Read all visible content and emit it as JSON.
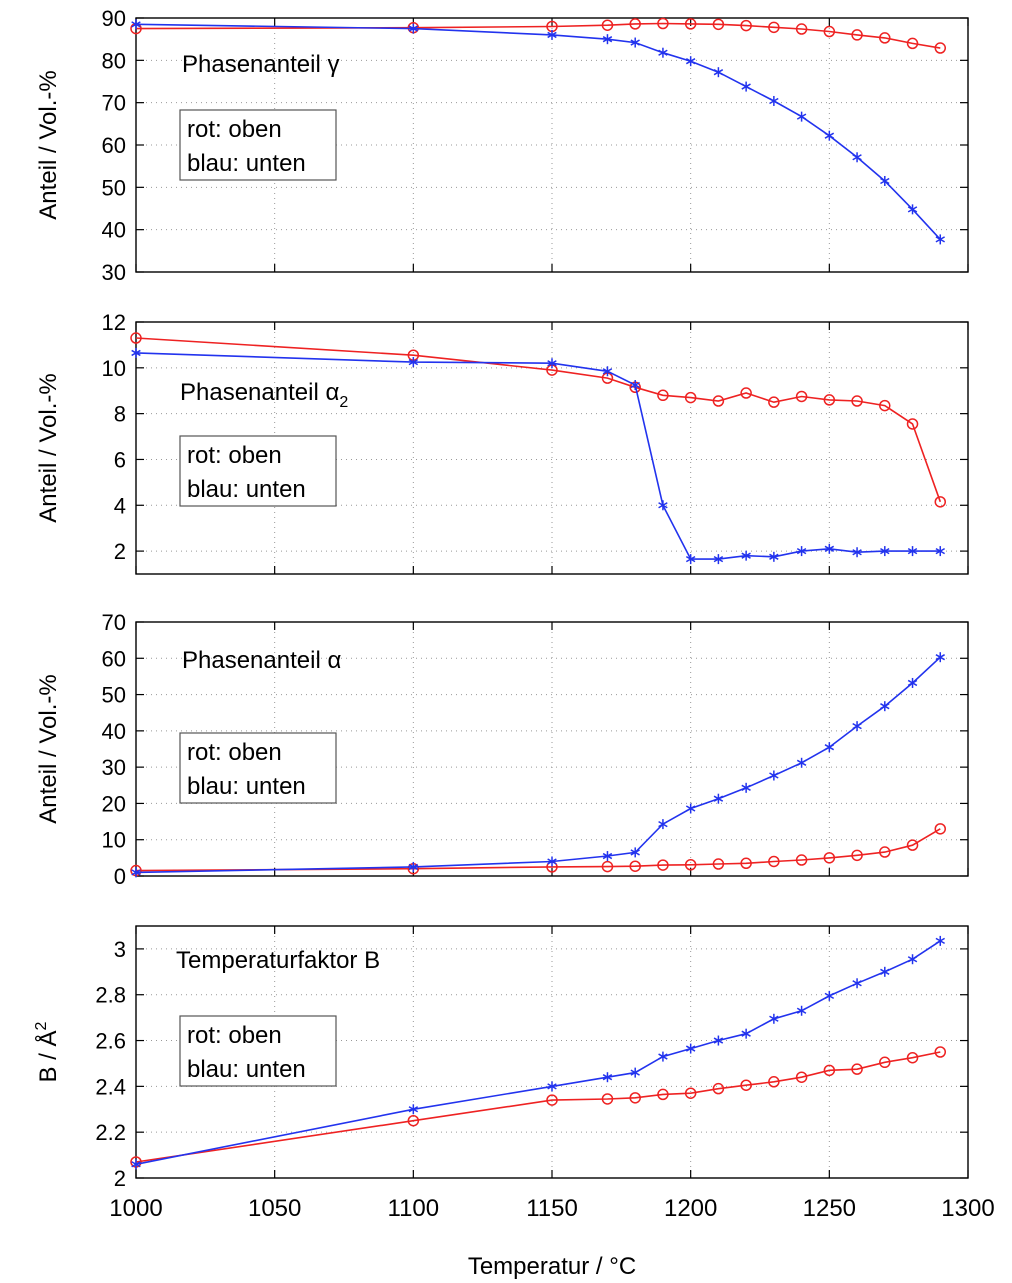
{
  "colors": {
    "red": "#ee2222",
    "blue": "#2233ee",
    "grid": "#999999"
  },
  "chart_data": [
    {
      "type": "line",
      "title": "Phasenanteil γ",
      "title_sub": "",
      "ylabel": "Anteil / Vol.-%",
      "ylabel_sup": "",
      "xlabel": "",
      "xlim": [
        1000,
        1300
      ],
      "ylim": [
        30,
        90
      ],
      "yticks": [
        "30",
        "40",
        "50",
        "60",
        "70",
        "80",
        "90"
      ],
      "xticks": [],
      "legend": [
        "rot: oben",
        "blau: unten"
      ],
      "series": [
        {
          "color": "red",
          "marker": "circle",
          "x": [
            1000,
            1100,
            1150,
            1170,
            1180,
            1190,
            1200,
            1210,
            1220,
            1230,
            1240,
            1250,
            1260,
            1270,
            1280,
            1290
          ],
          "values": [
            87.5,
            87.7,
            88.0,
            88.3,
            88.6,
            88.7,
            88.6,
            88.5,
            88.2,
            87.8,
            87.4,
            86.8,
            86.0,
            85.3,
            84.0,
            82.9
          ]
        },
        {
          "color": "blue",
          "marker": "asterisk",
          "x": [
            1000,
            1100,
            1150,
            1170,
            1180,
            1190,
            1200,
            1210,
            1220,
            1230,
            1240,
            1250,
            1260,
            1270,
            1280,
            1290
          ],
          "values": [
            88.5,
            87.5,
            86.0,
            85.0,
            84.2,
            81.8,
            79.8,
            77.2,
            73.8,
            70.4,
            66.7,
            62.2,
            57.1,
            51.5,
            44.8,
            37.7
          ]
        }
      ]
    },
    {
      "type": "line",
      "title": "Phasenanteil α",
      "title_sub": "2",
      "ylabel": "Anteil / Vol.-%",
      "ylabel_sup": "",
      "xlabel": "",
      "xlim": [
        1000,
        1300
      ],
      "ylim": [
        1,
        12
      ],
      "yticks": [
        "2",
        "4",
        "6",
        "8",
        "10",
        "12"
      ],
      "xticks": [],
      "legend": [
        "rot: oben",
        "blau: unten"
      ],
      "series": [
        {
          "color": "red",
          "marker": "circle",
          "x": [
            1000,
            1100,
            1150,
            1170,
            1180,
            1190,
            1200,
            1210,
            1220,
            1230,
            1240,
            1250,
            1260,
            1270,
            1280,
            1290
          ],
          "values": [
            11.3,
            10.55,
            9.9,
            9.55,
            9.15,
            8.8,
            8.7,
            8.55,
            8.9,
            8.5,
            8.75,
            8.6,
            8.55,
            8.35,
            7.55,
            4.15
          ]
        },
        {
          "color": "blue",
          "marker": "asterisk",
          "x": [
            1000,
            1100,
            1150,
            1170,
            1180,
            1190,
            1200,
            1210,
            1220,
            1230,
            1240,
            1250,
            1260,
            1270,
            1280,
            1290
          ],
          "values": [
            10.65,
            10.25,
            10.2,
            9.85,
            9.25,
            4.0,
            1.65,
            1.65,
            1.8,
            1.75,
            2.0,
            2.1,
            1.95,
            2.0,
            2.0,
            2.0
          ]
        }
      ]
    },
    {
      "type": "line",
      "title": "Phasenanteil α",
      "title_sub": "",
      "ylabel": "Anteil / Vol.-%",
      "ylabel_sup": "",
      "xlabel": "",
      "xlim": [
        1000,
        1300
      ],
      "ylim": [
        0,
        70
      ],
      "yticks": [
        "0",
        "10",
        "20",
        "30",
        "40",
        "50",
        "60",
        "70"
      ],
      "xticks": [],
      "legend": [
        "rot: oben",
        "blau: unten"
      ],
      "series": [
        {
          "color": "red",
          "marker": "circle",
          "x": [
            1000,
            1100,
            1150,
            1170,
            1180,
            1190,
            1200,
            1210,
            1220,
            1230,
            1240,
            1250,
            1260,
            1270,
            1280,
            1290
          ],
          "values": [
            1.5,
            2.0,
            2.5,
            2.6,
            2.7,
            3.0,
            3.1,
            3.3,
            3.5,
            4.0,
            4.4,
            5.0,
            5.7,
            6.6,
            8.5,
            13.0
          ]
        },
        {
          "color": "blue",
          "marker": "asterisk",
          "x": [
            1000,
            1100,
            1150,
            1170,
            1180,
            1190,
            1200,
            1210,
            1220,
            1230,
            1240,
            1250,
            1260,
            1270,
            1280,
            1290
          ],
          "values": [
            1.0,
            2.5,
            4.0,
            5.5,
            6.5,
            14.3,
            18.6,
            21.3,
            24.3,
            27.7,
            31.2,
            35.5,
            41.3,
            46.8,
            53.2,
            60.3
          ]
        }
      ]
    },
    {
      "type": "line",
      "title": "Temperaturfaktor B",
      "title_sub": "",
      "ylabel": "B / Å",
      "ylabel_sup": "2",
      "xlabel": "Temperatur / °C",
      "xlim": [
        1000,
        1300
      ],
      "ylim": [
        2.0,
        3.1
      ],
      "yticks": [
        "2",
        "2.2",
        "2.4",
        "2.6",
        "2.8",
        "3"
      ],
      "xticks": [
        "1000",
        "1050",
        "1100",
        "1150",
        "1200",
        "1250",
        "1300"
      ],
      "legend": [
        "rot: oben",
        "blau: unten"
      ],
      "series": [
        {
          "color": "red",
          "marker": "circle",
          "x": [
            1000,
            1100,
            1150,
            1170,
            1180,
            1190,
            1200,
            1210,
            1220,
            1230,
            1240,
            1250,
            1260,
            1270,
            1280,
            1290
          ],
          "values": [
            2.07,
            2.25,
            2.34,
            2.345,
            2.35,
            2.365,
            2.37,
            2.39,
            2.405,
            2.42,
            2.44,
            2.47,
            2.475,
            2.505,
            2.525,
            2.55
          ]
        },
        {
          "color": "blue",
          "marker": "asterisk",
          "x": [
            1000,
            1100,
            1150,
            1170,
            1180,
            1190,
            1200,
            1210,
            1220,
            1230,
            1240,
            1250,
            1260,
            1270,
            1280,
            1290
          ],
          "values": [
            2.06,
            2.3,
            2.4,
            2.44,
            2.46,
            2.53,
            2.565,
            2.6,
            2.63,
            2.695,
            2.73,
            2.795,
            2.85,
            2.9,
            2.955,
            3.035
          ]
        }
      ]
    }
  ]
}
